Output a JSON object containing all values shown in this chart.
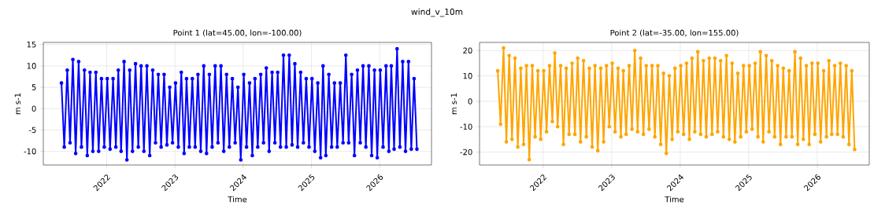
{
  "chart_data": [
    {
      "type": "line",
      "title": "Point 1 (lat=45.00, lon=-100.00)",
      "xlabel": "Time",
      "ylabel": "m s-1",
      "annotations": [
        "wind_v_10m"
      ],
      "x": [
        "2021-05-04",
        "2021-05-19",
        "2021-06-04",
        "2021-06-19",
        "2021-07-04",
        "2021-07-19",
        "2021-08-04",
        "2021-08-19",
        "2021-09-04",
        "2021-09-19",
        "2021-10-04",
        "2021-10-19",
        "2021-11-04",
        "2021-11-19",
        "2021-12-04",
        "2021-12-19",
        "2022-01-04",
        "2022-01-19",
        "2022-02-04",
        "2022-02-19",
        "2022-03-04",
        "2022-03-19",
        "2022-04-04",
        "2022-04-19",
        "2022-05-04",
        "2022-05-19",
        "2022-06-04",
        "2022-06-19",
        "2022-07-04",
        "2022-07-19",
        "2022-08-04",
        "2022-08-19",
        "2022-09-04",
        "2022-09-19",
        "2022-10-04",
        "2022-10-19",
        "2022-11-04",
        "2022-11-19",
        "2022-12-04",
        "2022-12-19",
        "2023-01-04",
        "2023-01-19",
        "2023-02-04",
        "2023-02-19",
        "2023-03-04",
        "2023-03-19",
        "2023-04-04",
        "2023-04-19",
        "2023-05-04",
        "2023-05-19",
        "2023-06-04",
        "2023-06-19",
        "2023-07-04",
        "2023-07-19",
        "2023-08-04",
        "2023-08-19",
        "2023-09-04",
        "2023-09-19",
        "2023-10-04",
        "2023-10-19",
        "2023-11-04",
        "2023-11-19",
        "2023-12-04",
        "2023-12-19",
        "2024-01-04",
        "2024-01-19",
        "2024-02-04",
        "2024-02-19",
        "2024-03-04",
        "2024-03-19",
        "2024-04-04",
        "2024-04-19",
        "2024-05-04",
        "2024-05-19",
        "2024-06-04",
        "2024-06-19",
        "2024-07-04",
        "2024-07-19",
        "2024-08-04",
        "2024-08-19",
        "2024-09-04",
        "2024-09-19",
        "2024-10-04",
        "2024-10-19",
        "2024-11-04",
        "2024-11-19",
        "2024-12-04",
        "2024-12-19",
        "2025-01-04",
        "2025-01-19",
        "2025-02-04",
        "2025-02-19",
        "2025-03-04",
        "2025-03-19",
        "2025-04-04",
        "2025-04-19",
        "2025-05-04",
        "2025-05-19",
        "2025-06-04",
        "2025-06-19",
        "2025-07-04",
        "2025-07-19",
        "2025-08-04",
        "2025-08-19",
        "2025-09-04",
        "2025-09-19",
        "2025-10-04",
        "2025-10-19",
        "2025-11-04",
        "2025-11-19",
        "2025-12-04",
        "2025-12-19",
        "2026-01-04",
        "2026-01-19",
        "2026-02-04",
        "2026-02-19",
        "2026-03-04",
        "2026-03-19",
        "2026-04-04",
        "2026-04-19",
        "2026-05-04",
        "2026-05-19",
        "2026-06-04",
        "2026-06-19",
        "2026-07-04",
        "2026-07-19"
      ],
      "series": [
        {
          "color": "#0000ff",
          "values": [
            6,
            -9,
            9,
            -8,
            11.5,
            -10.5,
            11,
            -9,
            9,
            -11,
            8.5,
            -10,
            8.5,
            -10,
            7,
            -9,
            7,
            -9.5,
            7,
            -9,
            9,
            -10,
            11,
            -12,
            9,
            -10,
            10.5,
            -9,
            10,
            -10,
            10,
            -11,
            9,
            -8,
            8,
            -9,
            8,
            -8.5,
            5,
            -8,
            6,
            -9,
            8.5,
            -10.5,
            7,
            -9,
            7,
            -9,
            8,
            -10,
            10,
            -10.5,
            8,
            -9,
            10,
            -8,
            10,
            -10,
            8,
            -9,
            7,
            -8,
            5,
            -12,
            8,
            -9,
            6,
            -11,
            7,
            -9,
            8,
            -8,
            9.5,
            -10,
            8.5,
            -8,
            8.5,
            -9,
            12.5,
            -9,
            12.5,
            -8.5,
            10.5,
            -9,
            8.5,
            -8,
            7,
            -9,
            7,
            -10,
            6,
            -11.5,
            10,
            -11,
            8,
            -9,
            6,
            -9,
            6,
            -8,
            12.5,
            -8,
            8,
            -11,
            9,
            -8,
            10,
            -9,
            10,
            -11,
            9,
            -11.5,
            9,
            -9,
            10,
            -10,
            10,
            -9.5,
            14,
            -9,
            11,
            -10,
            11,
            -9.5,
            7,
            -9.5
          ]
        }
      ],
      "xlim": [
        "2021-01-27",
        "2026-10-05"
      ],
      "ylim": [
        -13.2,
        15.5
      ],
      "xticks": [
        {
          "value": "2022-01-01",
          "label": "2022"
        },
        {
          "value": "2023-01-01",
          "label": "2023"
        },
        {
          "value": "2024-01-01",
          "label": "2024"
        },
        {
          "value": "2025-01-01",
          "label": "2025"
        },
        {
          "value": "2026-01-01",
          "label": "2026"
        }
      ],
      "yticks": [
        -10,
        -5,
        0,
        5,
        10,
        15
      ],
      "grid": true,
      "marker": "circle",
      "line_style": "solid"
    },
    {
      "type": "line",
      "title": "Point 2 (lat=-35.00, lon=155.00)",
      "xlabel": "Time",
      "ylabel": "m s-1",
      "x": [
        "2021-05-04",
        "2021-05-19",
        "2021-06-04",
        "2021-06-19",
        "2021-07-04",
        "2021-07-19",
        "2021-08-04",
        "2021-08-19",
        "2021-09-04",
        "2021-09-19",
        "2021-10-04",
        "2021-10-19",
        "2021-11-04",
        "2021-11-19",
        "2021-12-04",
        "2021-12-19",
        "2022-01-04",
        "2022-01-19",
        "2022-02-04",
        "2022-02-19",
        "2022-03-04",
        "2022-03-19",
        "2022-04-04",
        "2022-04-19",
        "2022-05-04",
        "2022-05-19",
        "2022-06-04",
        "2022-06-19",
        "2022-07-04",
        "2022-07-19",
        "2022-08-04",
        "2022-08-19",
        "2022-09-04",
        "2022-09-19",
        "2022-10-04",
        "2022-10-19",
        "2022-11-04",
        "2022-11-19",
        "2022-12-04",
        "2022-12-19",
        "2023-01-04",
        "2023-01-19",
        "2023-02-04",
        "2023-02-19",
        "2023-03-04",
        "2023-03-19",
        "2023-04-04",
        "2023-04-19",
        "2023-05-04",
        "2023-05-19",
        "2023-06-04",
        "2023-06-19",
        "2023-07-04",
        "2023-07-19",
        "2023-08-04",
        "2023-08-19",
        "2023-09-04",
        "2023-09-19",
        "2023-10-04",
        "2023-10-19",
        "2023-11-04",
        "2023-11-19",
        "2023-12-04",
        "2023-12-19",
        "2024-01-04",
        "2024-01-19",
        "2024-02-04",
        "2024-02-19",
        "2024-03-04",
        "2024-03-19",
        "2024-04-04",
        "2024-04-19",
        "2024-05-04",
        "2024-05-19",
        "2024-06-04",
        "2024-06-19",
        "2024-07-04",
        "2024-07-19",
        "2024-08-04",
        "2024-08-19",
        "2024-09-04",
        "2024-09-19",
        "2024-10-04",
        "2024-10-19",
        "2024-11-04",
        "2024-11-19",
        "2024-12-04",
        "2024-12-19",
        "2025-01-04",
        "2025-01-19",
        "2025-02-04",
        "2025-02-19",
        "2025-03-04",
        "2025-03-19",
        "2025-04-04",
        "2025-04-19",
        "2025-05-04",
        "2025-05-19",
        "2025-06-04",
        "2025-06-19",
        "2025-07-04",
        "2025-07-19",
        "2025-08-04",
        "2025-08-19",
        "2025-09-04",
        "2025-09-19",
        "2025-10-04",
        "2025-10-19",
        "2025-11-04",
        "2025-11-19",
        "2025-12-04",
        "2025-12-19",
        "2026-01-04",
        "2026-01-19",
        "2026-02-04",
        "2026-02-19",
        "2026-03-04",
        "2026-03-19",
        "2026-04-04",
        "2026-04-19",
        "2026-05-04",
        "2026-05-19",
        "2026-06-04",
        "2026-06-19",
        "2026-07-04",
        "2026-07-19"
      ],
      "series": [
        {
          "color": "#ffa500",
          "values": [
            12,
            -9,
            21,
            -16,
            18,
            -15,
            17,
            -18,
            13,
            -17,
            14,
            -23,
            14,
            -14,
            12,
            -15,
            12,
            -12,
            14,
            -8,
            19,
            -10,
            14,
            -17,
            13,
            -13,
            15,
            -13,
            17,
            -16,
            16,
            -14,
            13,
            -18,
            14,
            -19.5,
            13,
            -16,
            14,
            -10,
            15,
            -12,
            13,
            -14,
            12,
            -13,
            14,
            -11,
            20,
            -12,
            17,
            -13,
            14,
            -11,
            14,
            -14,
            14,
            -17,
            11,
            -20.5,
            10,
            -15,
            13,
            -12,
            14,
            -13,
            15,
            -15,
            17,
            -12,
            19.5,
            -13,
            16,
            -14,
            17,
            -13,
            17,
            -12,
            16,
            -14,
            18,
            -15,
            15,
            -16,
            11,
            -14,
            14,
            -12,
            14,
            -11,
            15,
            -14,
            19.5,
            -16,
            18,
            -12,
            16,
            -14,
            14,
            -17,
            13,
            -14,
            12,
            -14,
            19.5,
            -17,
            17,
            -15,
            14,
            -17,
            15,
            -13,
            15,
            -16,
            12,
            -14,
            16,
            -13,
            14,
            -13,
            15,
            -14,
            14,
            -17,
            12,
            -19
          ]
        }
      ],
      "xlim": [
        "2021-01-27",
        "2026-10-05"
      ],
      "ylim": [
        -25.1,
        23.2
      ],
      "xticks": [
        {
          "value": "2022-01-01",
          "label": "2022"
        },
        {
          "value": "2023-01-01",
          "label": "2023"
        },
        {
          "value": "2024-01-01",
          "label": "2024"
        },
        {
          "value": "2025-01-01",
          "label": "2025"
        },
        {
          "value": "2026-01-01",
          "label": "2026"
        }
      ],
      "yticks": [
        -20,
        -10,
        0,
        10,
        20
      ],
      "grid": true,
      "marker": "circle",
      "line_style": "solid"
    }
  ]
}
